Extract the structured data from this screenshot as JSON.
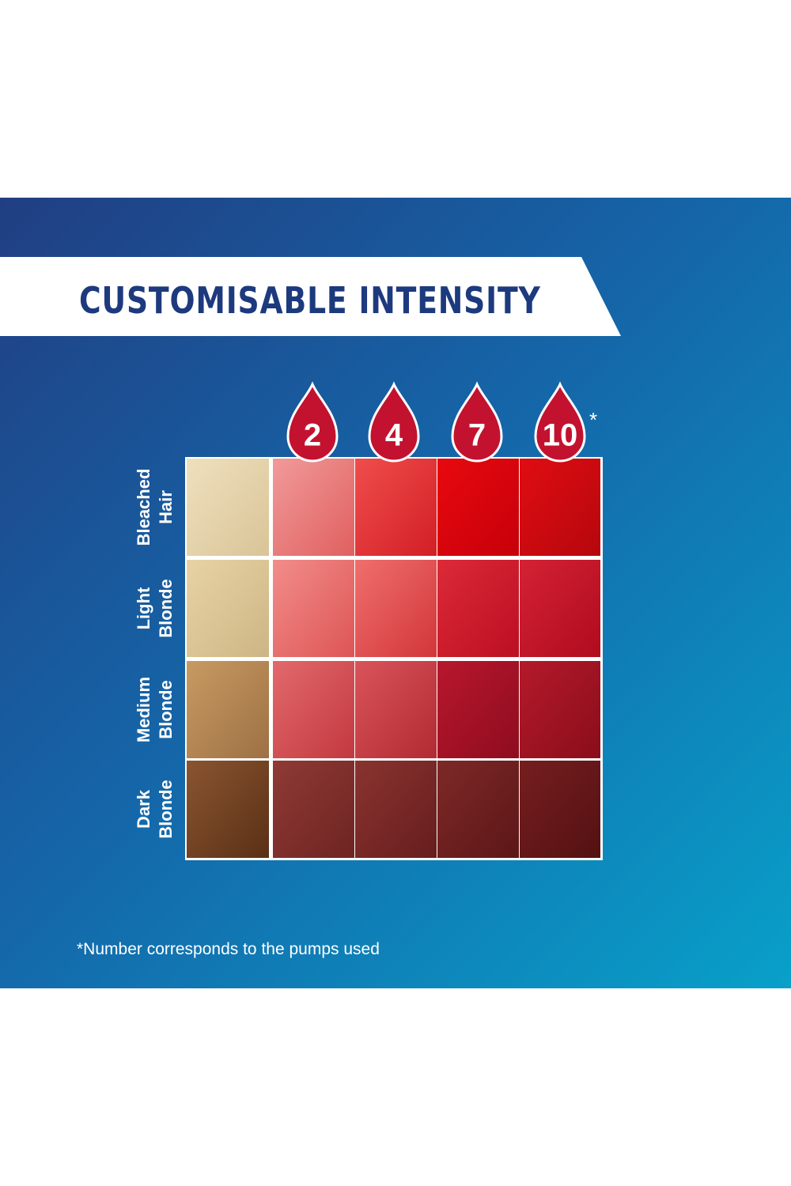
{
  "title": "CUSTOMISABLE INTENSITY",
  "columns": [
    "2",
    "4",
    "7",
    "10"
  ],
  "asterisk": "*",
  "rows": [
    [
      "Bleached",
      "Hair"
    ],
    [
      "Light",
      "Blonde"
    ],
    [
      "Medium",
      "Blonde"
    ],
    [
      "Dark",
      "Blonde"
    ]
  ],
  "footnote": "*Number corresponds to the pumps used"
}
